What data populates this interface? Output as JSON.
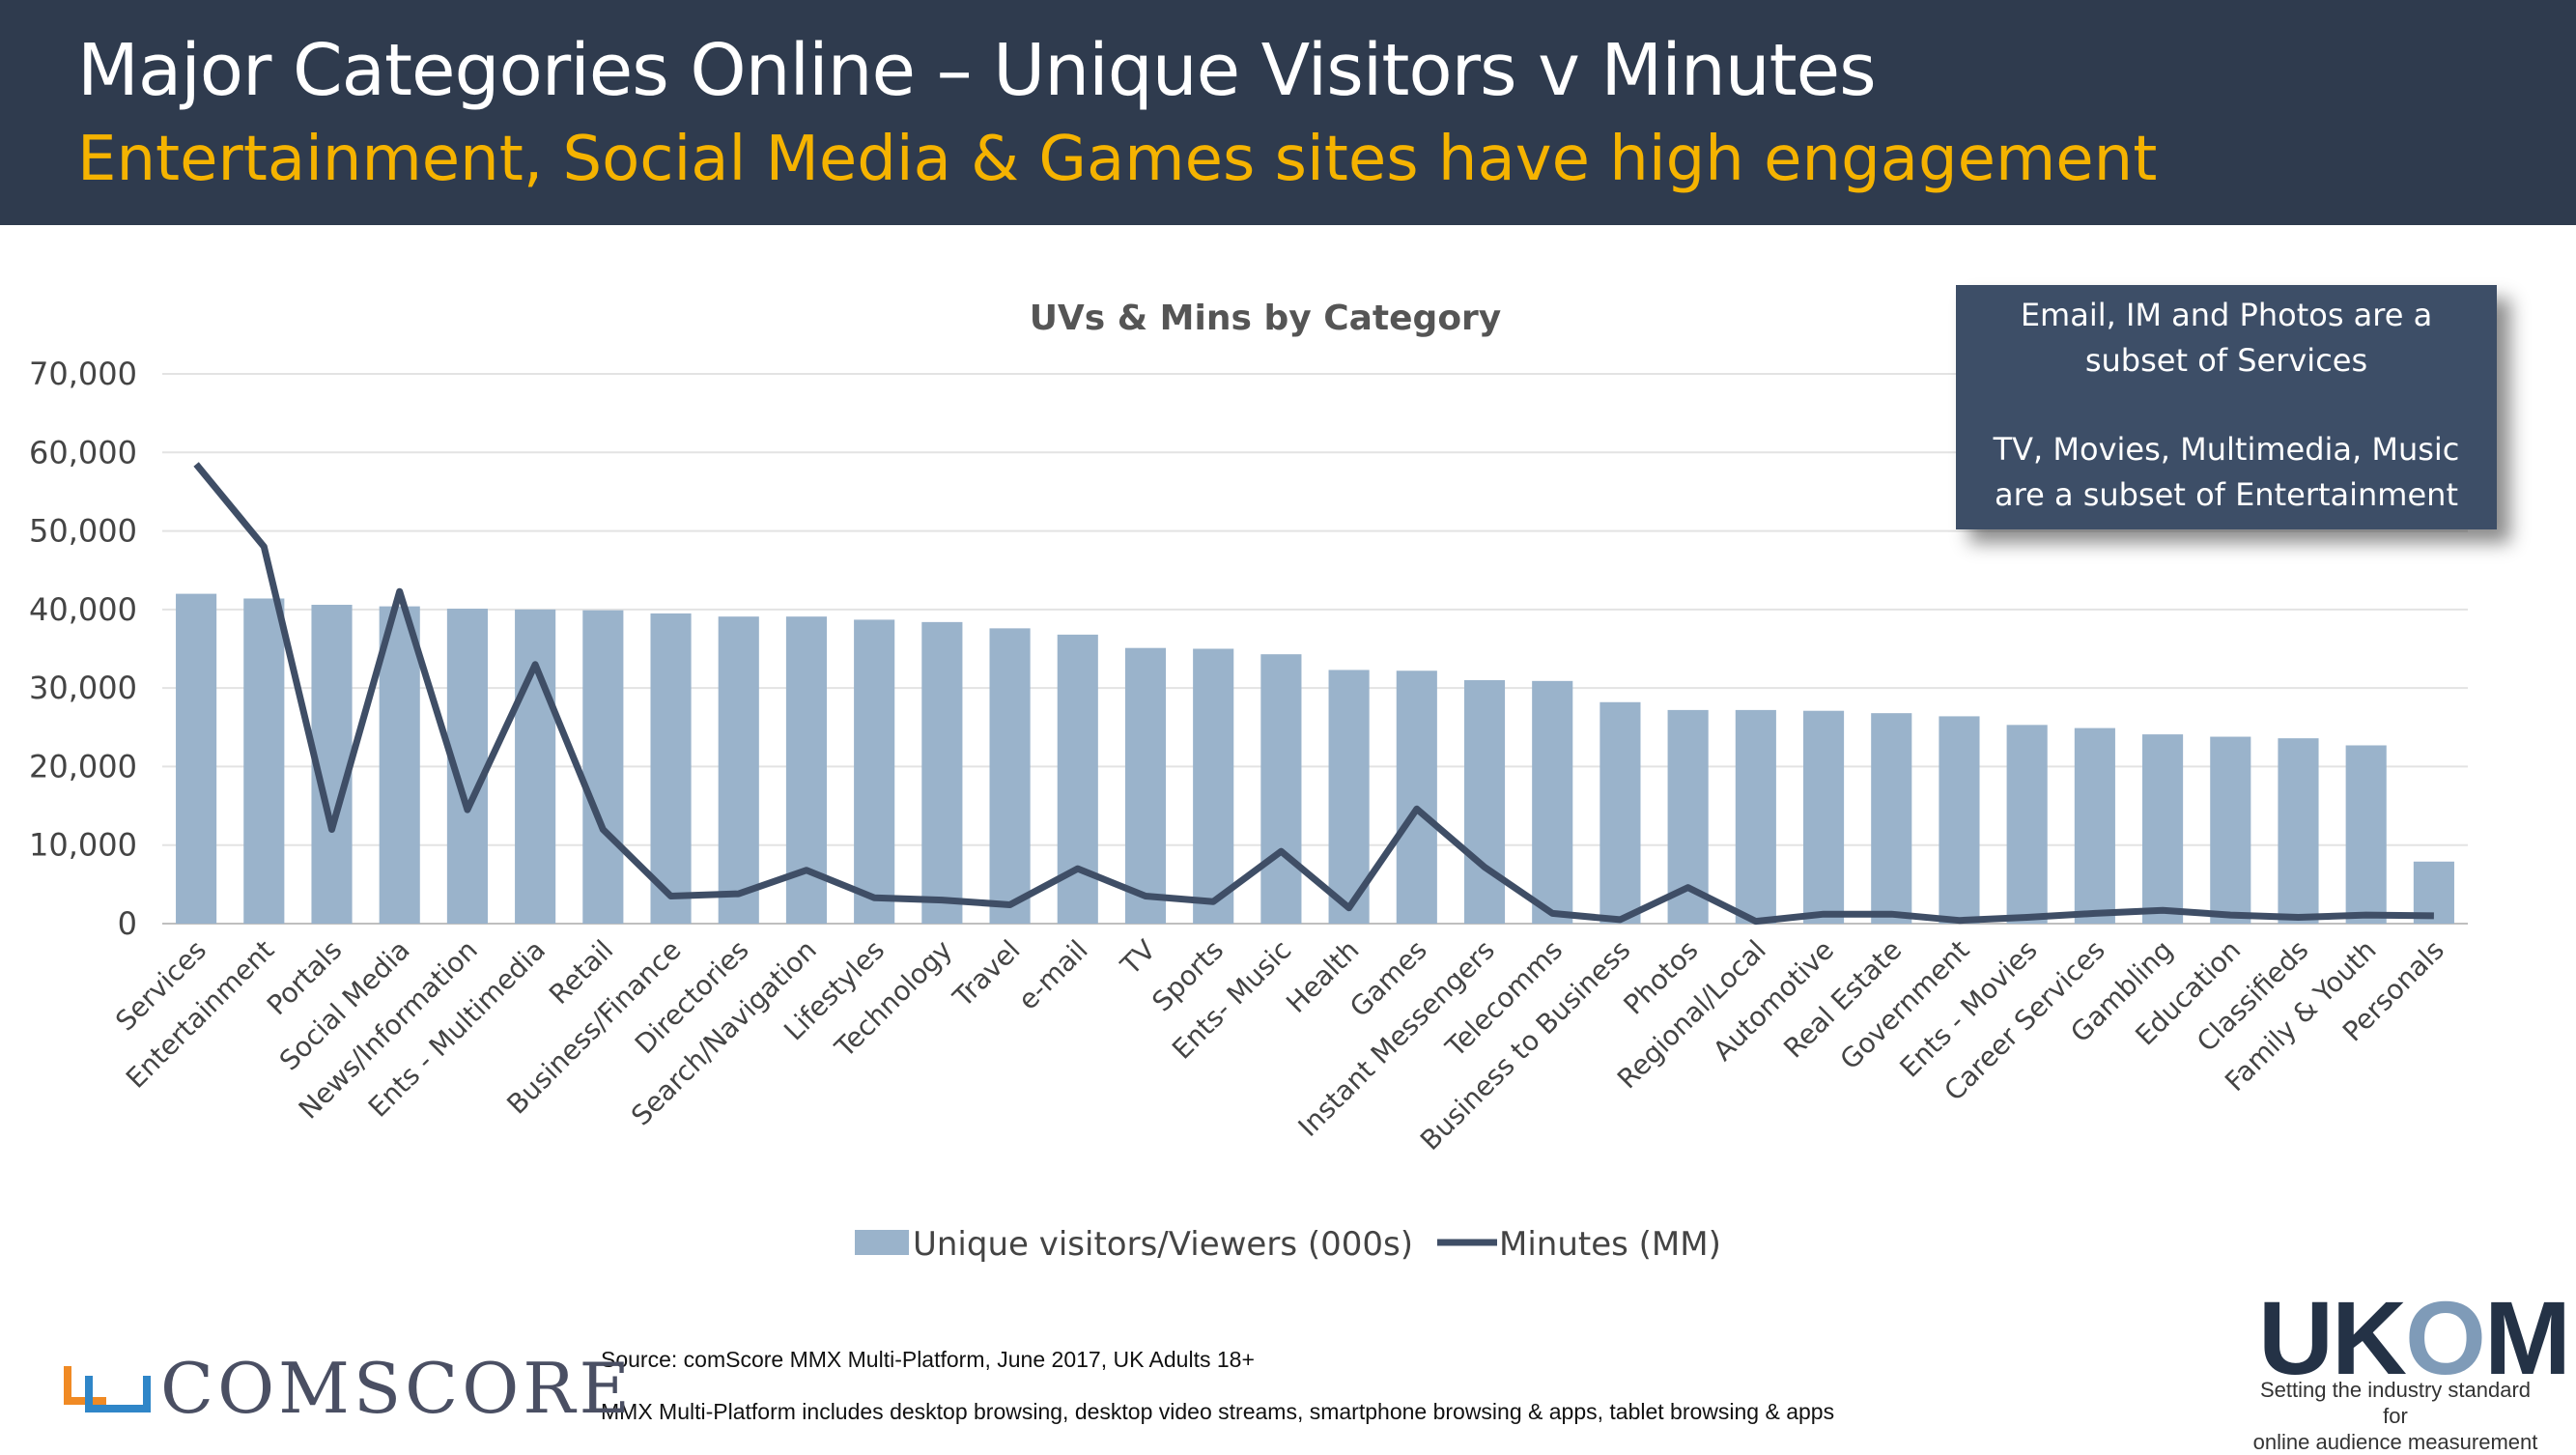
{
  "header": {
    "title": "Major Categories Online – Unique Visitors v Minutes",
    "subtitle": "Entertainment, Social Media & Games sites have high engagement"
  },
  "callout": {
    "line1": "Email, IM and Photos are a",
    "line2": "subset of Services",
    "line3": "TV, Movies, Multimedia, Music",
    "line4": "are a subset of Entertainment"
  },
  "footer": {
    "source": "Source: comScore MMX Multi-Platform, June 2017, UK Adults 18+",
    "note": "MMX Multi-Platform includes desktop browsing, desktop video streams, smartphone browsing & apps, tablet browsing & apps",
    "comscore_logo": "COMSCORE",
    "ukom_logo_1": "UK",
    "ukom_logo_o": "O",
    "ukom_logo_2": "M",
    "ukom_tagline_1": "Setting the industry standard for",
    "ukom_tagline_2": "online audience measurement"
  },
  "colors": {
    "bar": "#9ab3cb",
    "line": "#3f4e66",
    "header_bg": "#2f3b4e",
    "subtitle": "#f5b300"
  },
  "chart_data": {
    "type": "bar",
    "title": "UVs & Mins by Category",
    "ylim": [
      0,
      70000
    ],
    "yticks": [
      "0",
      "10,000",
      "20,000",
      "30,000",
      "40,000",
      "50,000",
      "60,000",
      "70,000"
    ],
    "grid": true,
    "legend_position": "bottom",
    "categories": [
      "Services",
      "Entertainment",
      "Portals",
      "Social Media",
      "News/Information",
      "Ents - Multimedia",
      "Retail",
      "Business/Finance",
      "Directories",
      "Search/Navigation",
      "Lifestyles",
      "Technology",
      "Travel",
      "e-mail",
      "TV",
      "Sports",
      "Ents- Music",
      "Health",
      "Games",
      "Instant Messengers",
      "Telecomms",
      "Business to Business",
      "Photos",
      "Regional/Local",
      "Automotive",
      "Real Estate",
      "Government",
      "Ents - Movies",
      "Career Services",
      "Gambling",
      "Education",
      "Classifieds",
      "Family & Youth",
      "Personals"
    ],
    "series": [
      {
        "name": "Unique visitors/Viewers (000s)",
        "type": "bar",
        "values": [
          42000,
          41400,
          40600,
          40400,
          40100,
          40000,
          39900,
          39500,
          39100,
          39100,
          38700,
          38400,
          37600,
          36800,
          35100,
          35000,
          34300,
          32300,
          32200,
          31000,
          30900,
          28200,
          27200,
          27200,
          27100,
          26800,
          26400,
          25300,
          24900,
          24100,
          23800,
          23600,
          22700,
          7900
        ]
      },
      {
        "name": "Minutes (MM)",
        "type": "line",
        "values": [
          58500,
          48000,
          12000,
          42300,
          14500,
          33000,
          12000,
          3500,
          3800,
          6800,
          3300,
          3000,
          2400,
          7000,
          3500,
          2800,
          9200,
          2000,
          14600,
          7200,
          1300,
          500,
          4600,
          300,
          1200,
          1200,
          400,
          800,
          1300,
          1700,
          1100,
          800,
          1100,
          1000
        ]
      }
    ]
  }
}
